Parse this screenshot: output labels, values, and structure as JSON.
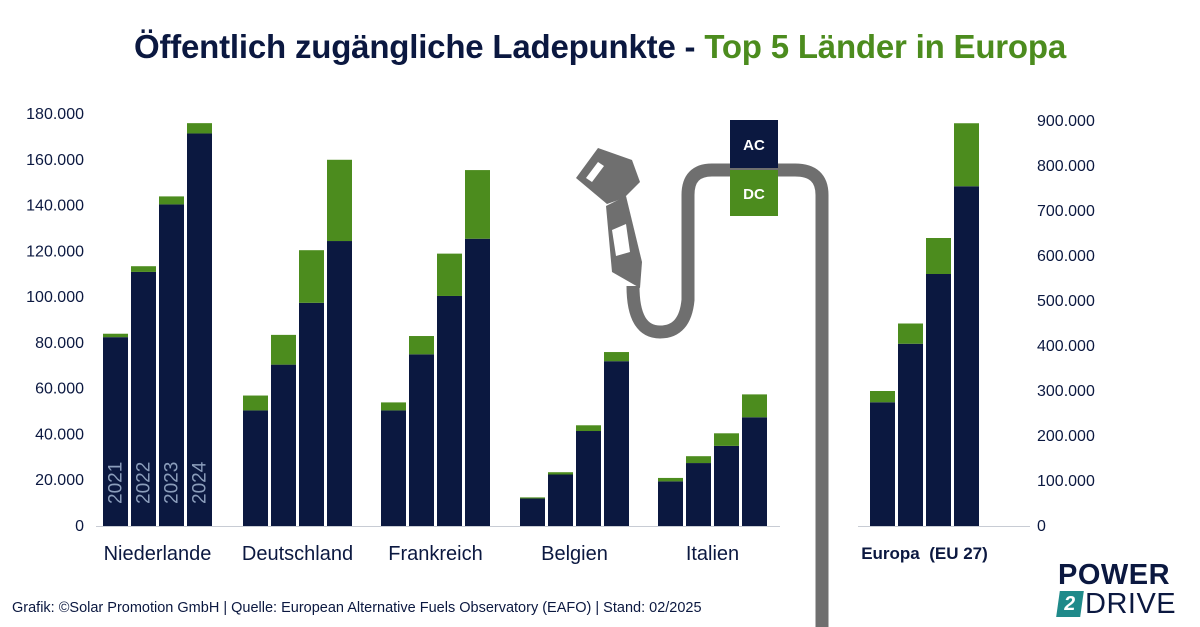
{
  "title": {
    "part1": "Öffentlich zugängliche Ladepunkte - ",
    "part2": "Top 5 Länder in Europa"
  },
  "colors": {
    "ac": "#0b1840",
    "dc": "#4c8c1e",
    "axis_text": "#0b1840",
    "year_label": "#8b9dbb",
    "cable": "#6f6f6f"
  },
  "icons": [
    "charging-plug-icon",
    "charging-cable-icon"
  ],
  "legend": {
    "ac_label": "AC",
    "dc_label": "DC"
  },
  "chart_data": [
    {
      "type": "bar",
      "stacked": true,
      "title": "",
      "categories": [
        "Niederlande",
        "Deutschland",
        "Frankreich",
        "Belgien",
        "Italien"
      ],
      "years": [
        "2021",
        "2022",
        "2023",
        "2024"
      ],
      "year_labels_shown_in": "Niederlande",
      "yticks": [
        "0",
        "20.000",
        "40.000",
        "60.000",
        "80.000",
        "100.000",
        "120.000",
        "140.000",
        "160.000",
        "180.000"
      ],
      "ylim": [
        0,
        180000
      ],
      "y_axis_position": "left",
      "grid": false,
      "series": [
        {
          "name": "AC",
          "values": [
            [
              82500,
              111000,
              140500,
              171500
            ],
            [
              50500,
              70500,
              97500,
              124500
            ],
            [
              50500,
              75000,
              100500,
              125500
            ],
            [
              12000,
              22500,
              41500,
              72000
            ],
            [
              19500,
              27500,
              35000,
              47500
            ]
          ]
        },
        {
          "name": "DC",
          "values": [
            [
              1500,
              2500,
              3500,
              4500
            ],
            [
              6500,
              13000,
              23000,
              35500
            ],
            [
              3500,
              8000,
              18500,
              30000
            ],
            [
              500,
              1000,
              2500,
              4000
            ],
            [
              1500,
              3000,
              5500,
              10000
            ]
          ]
        }
      ]
    },
    {
      "type": "bar",
      "stacked": true,
      "title": "",
      "categories": [
        "Europa  (EU 27)"
      ],
      "years": [
        "2021",
        "2022",
        "2023",
        "2024"
      ],
      "yticks": [
        "0",
        "100.000",
        "200.000",
        "300.000",
        "400.000",
        "500.000",
        "600.000",
        "700.000",
        "800.000",
        "900.000"
      ],
      "ylim": [
        0,
        900000
      ],
      "y_axis_position": "right",
      "grid": false,
      "series": [
        {
          "name": "AC",
          "values": [
            [
              275000,
              405000,
              560000,
              755000
            ]
          ]
        },
        {
          "name": "DC",
          "values": [
            [
              25000,
              45000,
              80000,
              140000
            ]
          ]
        }
      ]
    }
  ],
  "footer": "Grafik: ©Solar Promotion GmbH | Quelle: European Alternative Fuels Observatory (EAFO) | Stand: 02/2025",
  "logo": {
    "line1": "POWER",
    "number": "2",
    "line2": "DRIVE"
  }
}
